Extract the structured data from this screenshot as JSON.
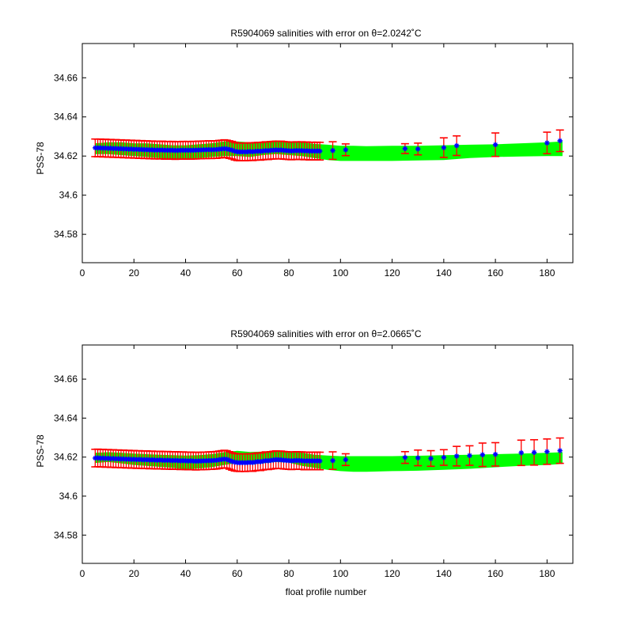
{
  "chart_data": [
    {
      "type": "scatter",
      "title": "R5904069 salinities with error on θ=2.0242˚C",
      "xlabel": "",
      "ylabel": "PSS-78",
      "xlim": [
        0,
        190
      ],
      "ylim": [
        34.5655,
        34.6775
      ],
      "xticks": [
        0,
        20,
        40,
        60,
        80,
        100,
        120,
        140,
        160,
        180
      ],
      "yticks": [
        34.58,
        34.6,
        34.62,
        34.64,
        34.66
      ],
      "xtick_labels": [
        "0",
        "20",
        "40",
        "60",
        "80",
        "100",
        "120",
        "140",
        "160",
        "180"
      ],
      "ytick_labels": [
        "34.58",
        "34.6",
        "34.62",
        "34.64",
        "34.66"
      ],
      "colors": {
        "band": "#00ff00",
        "points": "#0000ff",
        "errorbars": "#ff0000"
      },
      "band": {
        "x": [
          5,
          10,
          15,
          20,
          25,
          30,
          35,
          40,
          45,
          50,
          55,
          60,
          65,
          70,
          75,
          80,
          85,
          90,
          95,
          100,
          105,
          110,
          120,
          130,
          140,
          150,
          160,
          170,
          180,
          186
        ],
        "lower": [
          34.621,
          34.621,
          34.6205,
          34.62,
          34.6195,
          34.619,
          34.6185,
          34.6185,
          34.619,
          34.6195,
          34.62,
          34.62,
          34.6195,
          34.6205,
          34.621,
          34.6205,
          34.62,
          34.619,
          34.618,
          34.6175,
          34.6175,
          34.6175,
          34.6175,
          34.6178,
          34.618,
          34.619,
          34.6195,
          34.6198,
          34.62,
          34.62
        ],
        "upper": [
          34.6265,
          34.627,
          34.627,
          34.6265,
          34.6265,
          34.626,
          34.6255,
          34.6255,
          34.626,
          34.6265,
          34.6275,
          34.6275,
          34.627,
          34.6275,
          34.628,
          34.6275,
          34.627,
          34.6262,
          34.6258,
          34.6252,
          34.6252,
          34.625,
          34.6252,
          34.6252,
          34.6255,
          34.6258,
          34.626,
          34.6265,
          34.627,
          34.6275
        ]
      },
      "points": {
        "x": [
          5,
          6,
          7,
          8,
          9,
          10,
          11,
          12,
          13,
          14,
          15,
          16,
          17,
          18,
          19,
          20,
          21,
          22,
          23,
          24,
          25,
          26,
          27,
          28,
          29,
          30,
          31,
          32,
          33,
          34,
          35,
          36,
          37,
          38,
          39,
          40,
          41,
          42,
          43,
          44,
          45,
          46,
          47,
          48,
          49,
          50,
          51,
          52,
          53,
          54,
          55,
          56,
          57,
          58,
          59,
          60,
          61,
          62,
          63,
          64,
          65,
          66,
          67,
          68,
          69,
          70,
          71,
          72,
          73,
          74,
          75,
          76,
          77,
          78,
          79,
          80,
          81,
          82,
          83,
          84,
          85,
          86,
          87,
          88,
          89,
          90,
          91,
          92,
          97,
          102,
          125,
          130,
          140,
          145,
          160,
          180,
          185
        ],
        "y": [
          34.6242,
          34.6241,
          34.6242,
          34.624,
          34.6241,
          34.6239,
          34.624,
          34.6238,
          34.6239,
          34.6237,
          34.6238,
          34.6236,
          34.6237,
          34.6235,
          34.6236,
          34.6234,
          34.6235,
          34.6233,
          34.6234,
          34.6232,
          34.6233,
          34.6231,
          34.6232,
          34.623,
          34.6231,
          34.623,
          34.6231,
          34.6229,
          34.623,
          34.6229,
          34.623,
          34.6228,
          34.6229,
          34.6229,
          34.623,
          34.6229,
          34.623,
          34.6229,
          34.623,
          34.623,
          34.6231,
          34.6231,
          34.6232,
          34.6232,
          34.6233,
          34.6232,
          34.6233,
          34.6233,
          34.6235,
          34.6236,
          34.6238,
          34.6236,
          34.6233,
          34.623,
          34.6225,
          34.6222,
          34.6221,
          34.6222,
          34.6221,
          34.6222,
          34.6223,
          34.6222,
          34.6224,
          34.6225,
          34.6224,
          34.6226,
          34.6228,
          34.6227,
          34.6229,
          34.623,
          34.6231,
          34.623,
          34.6231,
          34.6229,
          34.6228,
          34.6227,
          34.6226,
          34.6227,
          34.6228,
          34.6227,
          34.6228,
          34.6226,
          34.6227,
          34.6225,
          34.6226,
          34.6225,
          34.6226,
          34.6225,
          34.6228,
          34.6232,
          34.6238,
          34.6236,
          34.6243,
          34.6253,
          34.6258,
          34.6267,
          34.6278
        ],
        "err": [
          0.0045,
          0.0045,
          0.0045,
          0.0045,
          0.0045,
          0.0045,
          0.0045,
          0.0045,
          0.0045,
          0.0045,
          0.0045,
          0.0045,
          0.0045,
          0.0045,
          0.0045,
          0.0045,
          0.0045,
          0.0045,
          0.0045,
          0.0045,
          0.0045,
          0.0045,
          0.0045,
          0.0045,
          0.0045,
          0.0045,
          0.0045,
          0.0045,
          0.0045,
          0.0045,
          0.0045,
          0.0045,
          0.0045,
          0.0045,
          0.0045,
          0.0045,
          0.0045,
          0.0045,
          0.0045,
          0.0045,
          0.0045,
          0.0045,
          0.0045,
          0.0045,
          0.0045,
          0.0045,
          0.0045,
          0.0045,
          0.0045,
          0.0045,
          0.0045,
          0.0045,
          0.0045,
          0.0045,
          0.0045,
          0.0045,
          0.0045,
          0.0045,
          0.0045,
          0.0045,
          0.0045,
          0.0045,
          0.0045,
          0.0045,
          0.0045,
          0.0045,
          0.0045,
          0.0045,
          0.0045,
          0.0045,
          0.0045,
          0.0045,
          0.0045,
          0.0045,
          0.0045,
          0.0045,
          0.0045,
          0.0045,
          0.0045,
          0.0045,
          0.0045,
          0.0045,
          0.0045,
          0.0045,
          0.0045,
          0.0045,
          0.0045,
          0.0045,
          0.0045,
          0.003,
          0.0025,
          0.003,
          0.005,
          0.005,
          0.006,
          0.0055,
          0.0055
        ]
      }
    },
    {
      "type": "scatter",
      "title": "R5904069 salinities with error on θ=2.0665˚C",
      "xlabel": "float profile number",
      "ylabel": "PSS-78",
      "xlim": [
        0,
        190
      ],
      "ylim": [
        34.5655,
        34.6775
      ],
      "xticks": [
        0,
        20,
        40,
        60,
        80,
        100,
        120,
        140,
        160,
        180
      ],
      "yticks": [
        34.58,
        34.6,
        34.62,
        34.64,
        34.66
      ],
      "xtick_labels": [
        "0",
        "20",
        "40",
        "60",
        "80",
        "100",
        "120",
        "140",
        "160",
        "180"
      ],
      "ytick_labels": [
        "34.58",
        "34.6",
        "34.62",
        "34.64",
        "34.66"
      ],
      "colors": {
        "band": "#00ff00",
        "points": "#0000ff",
        "errorbars": "#ff0000"
      },
      "band": {
        "x": [
          5,
          10,
          15,
          20,
          25,
          30,
          35,
          40,
          45,
          50,
          55,
          60,
          65,
          70,
          75,
          80,
          85,
          90,
          95,
          100,
          105,
          110,
          120,
          130,
          140,
          150,
          160,
          170,
          180,
          186
        ],
        "lower": [
          34.617,
          34.6175,
          34.6168,
          34.616,
          34.6155,
          34.615,
          34.6145,
          34.6138,
          34.6142,
          34.6148,
          34.616,
          34.617,
          34.6162,
          34.6168,
          34.6175,
          34.6172,
          34.6155,
          34.6145,
          34.6135,
          34.6128,
          34.6125,
          34.6125,
          34.6128,
          34.613,
          34.6135,
          34.614,
          34.6148,
          34.6155,
          34.616,
          34.6165
        ],
        "upper": [
          34.6222,
          34.6225,
          34.6222,
          34.6218,
          34.6215,
          34.6212,
          34.621,
          34.6208,
          34.621,
          34.6215,
          34.6225,
          34.6232,
          34.6226,
          34.6228,
          34.6232,
          34.6228,
          34.6222,
          34.6212,
          34.6208,
          34.6205,
          34.6205,
          34.6205,
          34.6205,
          34.6207,
          34.621,
          34.6212,
          34.6215,
          34.6218,
          34.6222,
          34.6225
        ]
      },
      "points": {
        "x": [
          5,
          6,
          7,
          8,
          9,
          10,
          11,
          12,
          13,
          14,
          15,
          16,
          17,
          18,
          19,
          20,
          21,
          22,
          23,
          24,
          25,
          26,
          27,
          28,
          29,
          30,
          31,
          32,
          33,
          34,
          35,
          36,
          37,
          38,
          39,
          40,
          41,
          42,
          43,
          44,
          45,
          46,
          47,
          48,
          49,
          50,
          51,
          52,
          53,
          54,
          55,
          56,
          57,
          58,
          59,
          60,
          61,
          62,
          63,
          64,
          65,
          66,
          67,
          68,
          69,
          70,
          71,
          72,
          73,
          74,
          75,
          76,
          77,
          78,
          79,
          80,
          81,
          82,
          83,
          84,
          85,
          86,
          87,
          88,
          89,
          90,
          91,
          92,
          97,
          102,
          125,
          130,
          135,
          140,
          145,
          150,
          155,
          160,
          170,
          175,
          180,
          185
        ],
        "y": [
          34.6195,
          34.6196,
          34.6194,
          34.6195,
          34.6193,
          34.6194,
          34.6192,
          34.6193,
          34.6191,
          34.6192,
          34.619,
          34.6191,
          34.6189,
          34.619,
          34.6188,
          34.6189,
          34.6187,
          34.6188,
          34.6187,
          34.6186,
          34.6187,
          34.6185,
          34.6186,
          34.6185,
          34.6184,
          34.6185,
          34.6184,
          34.6183,
          34.6184,
          34.6183,
          34.6182,
          34.6183,
          34.6182,
          34.6181,
          34.6182,
          34.6181,
          34.618,
          34.6181,
          34.618,
          34.6179,
          34.618,
          34.618,
          34.6181,
          34.6181,
          34.6182,
          34.6182,
          34.6183,
          34.6184,
          34.6186,
          34.6188,
          34.619,
          34.6188,
          34.6183,
          34.6178,
          34.6174,
          34.6172,
          34.6171,
          34.6172,
          34.6171,
          34.6172,
          34.6173,
          34.6172,
          34.6175,
          34.6177,
          34.6176,
          34.6179,
          34.6182,
          34.6181,
          34.6183,
          34.6185,
          34.6187,
          34.6186,
          34.6186,
          34.6184,
          34.6183,
          34.6182,
          34.6181,
          34.6182,
          34.6183,
          34.6182,
          34.6182,
          34.618,
          34.6181,
          34.618,
          34.6181,
          34.618,
          34.6181,
          34.618,
          34.6182,
          34.6187,
          34.6198,
          34.6196,
          34.6193,
          34.6198,
          34.6205,
          34.6208,
          34.6212,
          34.6214,
          34.6222,
          34.6224,
          34.6228,
          34.6233
        ],
        "err": [
          0.0045,
          0.0045,
          0.0045,
          0.0045,
          0.0045,
          0.0045,
          0.0045,
          0.0045,
          0.0045,
          0.0045,
          0.0045,
          0.0045,
          0.0045,
          0.0045,
          0.0045,
          0.0045,
          0.0045,
          0.0045,
          0.0045,
          0.0045,
          0.0045,
          0.0045,
          0.0045,
          0.0045,
          0.0045,
          0.0045,
          0.0045,
          0.0045,
          0.0045,
          0.0045,
          0.0045,
          0.0045,
          0.0045,
          0.0045,
          0.0045,
          0.0045,
          0.0045,
          0.0045,
          0.0045,
          0.0045,
          0.0045,
          0.0045,
          0.0045,
          0.0045,
          0.0045,
          0.0045,
          0.0045,
          0.0045,
          0.0045,
          0.0045,
          0.0045,
          0.0045,
          0.0045,
          0.0045,
          0.0045,
          0.0045,
          0.0045,
          0.0045,
          0.0045,
          0.0045,
          0.0045,
          0.0045,
          0.0045,
          0.0045,
          0.0045,
          0.0045,
          0.0045,
          0.0045,
          0.0045,
          0.0045,
          0.0045,
          0.0045,
          0.0045,
          0.0045,
          0.0045,
          0.0045,
          0.0045,
          0.0045,
          0.0045,
          0.0045,
          0.0045,
          0.0045,
          0.0045,
          0.0045,
          0.0045,
          0.0045,
          0.0045,
          0.0045,
          0.0045,
          0.003,
          0.003,
          0.004,
          0.004,
          0.004,
          0.005,
          0.005,
          0.006,
          0.006,
          0.0065,
          0.0065,
          0.0065,
          0.0065
        ]
      }
    }
  ]
}
